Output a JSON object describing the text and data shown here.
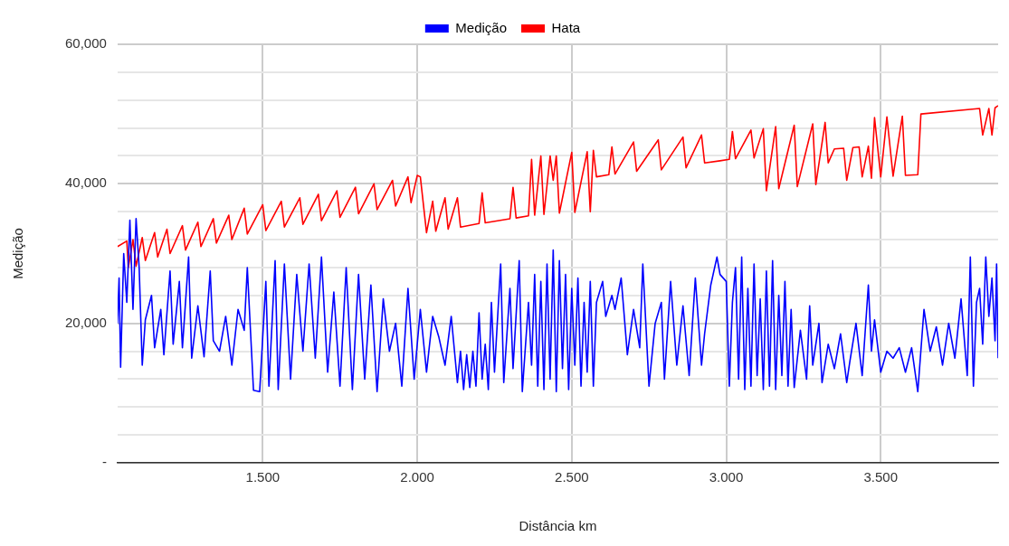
{
  "chart_data": {
    "type": "line",
    "xlabel": "Distância km",
    "ylabel": "Medição",
    "legend": "top",
    "grid": true,
    "marker": "none",
    "xlim": [
      1.03,
      3.88
    ],
    "xticks": [
      {
        "value": 1.5,
        "label": "1.500"
      },
      {
        "value": 2,
        "label": "2.000"
      },
      {
        "value": 2.5,
        "label": "2.500"
      },
      {
        "value": 3,
        "label": "3.000"
      },
      {
        "value": 3.5,
        "label": "3.500"
      }
    ],
    "ylim": [
      0,
      60000
    ],
    "yticks": [
      {
        "value": 0,
        "label": "-"
      },
      {
        "value": 4000,
        "label": null
      },
      {
        "value": 8000,
        "label": null
      },
      {
        "value": 12000,
        "label": null
      },
      {
        "value": 16000,
        "label": null
      },
      {
        "value": 20000,
        "label": "20,000"
      },
      {
        "value": 24000,
        "label": null
      },
      {
        "value": 28000,
        "label": null
      },
      {
        "value": 32000,
        "label": null
      },
      {
        "value": 36000,
        "label": null
      },
      {
        "value": 40000,
        "label": "40,000"
      },
      {
        "value": 44000,
        "label": null
      },
      {
        "value": 48000,
        "label": null
      },
      {
        "value": 52000,
        "label": null
      },
      {
        "value": 56000,
        "label": null
      },
      {
        "value": 60000,
        "label": "60,000"
      }
    ],
    "series": [
      {
        "name": "Medição",
        "color": "#0000ff",
        "x": [
          1.03,
          1.035,
          1.04,
          1.05,
          1.06,
          1.07,
          1.08,
          1.09,
          1.1,
          1.11,
          1.12,
          1.14,
          1.15,
          1.17,
          1.18,
          1.2,
          1.21,
          1.23,
          1.24,
          1.26,
          1.27,
          1.29,
          1.31,
          1.33,
          1.34,
          1.36,
          1.38,
          1.4,
          1.42,
          1.44,
          1.45,
          1.47,
          1.49,
          1.51,
          1.52,
          1.54,
          1.55,
          1.57,
          1.59,
          1.61,
          1.63,
          1.65,
          1.67,
          1.69,
          1.71,
          1.73,
          1.75,
          1.77,
          1.79,
          1.81,
          1.83,
          1.85,
          1.87,
          1.89,
          1.91,
          1.93,
          1.95,
          1.97,
          1.99,
          2.01,
          2.03,
          2.05,
          2.07,
          2.09,
          2.11,
          2.13,
          2.14,
          2.15,
          2.16,
          2.17,
          2.18,
          2.19,
          2.2,
          2.21,
          2.22,
          2.23,
          2.24,
          2.25,
          2.27,
          2.28,
          2.3,
          2.31,
          2.33,
          2.34,
          2.36,
          2.37,
          2.38,
          2.39,
          2.4,
          2.41,
          2.42,
          2.43,
          2.44,
          2.45,
          2.46,
          2.47,
          2.48,
          2.49,
          2.5,
          2.51,
          2.52,
          2.53,
          2.54,
          2.55,
          2.56,
          2.57,
          2.58,
          2.6,
          2.61,
          2.63,
          2.64,
          2.66,
          2.68,
          2.7,
          2.72,
          2.73,
          2.75,
          2.77,
          2.79,
          2.8,
          2.82,
          2.84,
          2.86,
          2.88,
          2.9,
          2.92,
          2.93,
          2.95,
          2.97,
          2.98,
          3.0,
          3.01,
          3.02,
          3.03,
          3.04,
          3.05,
          3.06,
          3.07,
          3.08,
          3.09,
          3.1,
          3.11,
          3.12,
          3.13,
          3.14,
          3.15,
          3.16,
          3.17,
          3.18,
          3.19,
          3.2,
          3.21,
          3.22,
          3.24,
          3.26,
          3.27,
          3.28,
          3.3,
          3.31,
          3.33,
          3.35,
          3.37,
          3.39,
          3.4,
          3.42,
          3.44,
          3.46,
          3.47,
          3.48,
          3.5,
          3.52,
          3.54,
          3.56,
          3.58,
          3.6,
          3.62,
          3.64,
          3.66,
          3.68,
          3.7,
          3.72,
          3.74,
          3.76,
          3.78,
          3.79,
          3.8,
          3.81,
          3.82,
          3.83,
          3.84,
          3.85,
          3.86,
          3.87,
          3.875,
          3.88
        ],
        "values": [
          20000,
          26500,
          13700,
          30000,
          23000,
          34800,
          22000,
          35000,
          28000,
          14000,
          20500,
          24000,
          16500,
          22000,
          15500,
          27500,
          17000,
          26000,
          16500,
          29500,
          15000,
          22500,
          15200,
          27500,
          17500,
          16000,
          21000,
          14000,
          22000,
          19000,
          28000,
          10400,
          10200,
          26000,
          11000,
          29000,
          10500,
          28500,
          12000,
          27000,
          16000,
          28500,
          15000,
          29500,
          13000,
          24500,
          11000,
          28000,
          10500,
          27000,
          12000,
          25500,
          10200,
          23500,
          16000,
          20000,
          11000,
          25000,
          12000,
          22000,
          13000,
          21000,
          18000,
          14000,
          21000,
          11500,
          16000,
          10500,
          15500,
          10800,
          16000,
          11000,
          21500,
          12000,
          17000,
          10500,
          23000,
          13000,
          28500,
          11500,
          25000,
          13500,
          29000,
          10200,
          23000,
          14000,
          27000,
          11000,
          26000,
          10500,
          28500,
          12000,
          30500,
          10200,
          29000,
          13500,
          27000,
          10500,
          25000,
          14000,
          26500,
          11000,
          23000,
          13000,
          26000,
          11000,
          23000,
          26000,
          21000,
          24000,
          22000,
          26500,
          15500,
          22000,
          16500,
          28500,
          11000,
          20000,
          23000,
          12000,
          26000,
          14000,
          22500,
          12500,
          26500,
          14000,
          18500,
          25500,
          29500,
          27000,
          26000,
          11000,
          23000,
          28000,
          12000,
          29500,
          10500,
          25000,
          11000,
          28500,
          12500,
          23500,
          10500,
          27500,
          11000,
          29000,
          10500,
          24000,
          12500,
          26000,
          11000,
          22000,
          10800,
          19000,
          12000,
          22500,
          14000,
          20000,
          11500,
          17000,
          13500,
          18500,
          11500,
          14500,
          20000,
          12500,
          25500,
          16000,
          20500,
          13000,
          16000,
          15000,
          16500,
          13000,
          16500,
          10200,
          22000,
          16000,
          19500,
          14000,
          20000,
          15000,
          23500,
          12500,
          29500,
          11000,
          23000,
          25000,
          17000,
          29500,
          21000,
          26500,
          17500,
          28500,
          15000
        ]
      },
      {
        "name": "Hata",
        "color": "#ff0000",
        "x": [
          1.03,
          1.06,
          1.065,
          1.08,
          1.09,
          1.11,
          1.12,
          1.15,
          1.16,
          1.19,
          1.2,
          1.24,
          1.25,
          1.29,
          1.3,
          1.34,
          1.35,
          1.39,
          1.4,
          1.44,
          1.45,
          1.5,
          1.51,
          1.56,
          1.57,
          1.62,
          1.63,
          1.68,
          1.69,
          1.74,
          1.75,
          1.8,
          1.81,
          1.86,
          1.87,
          1.92,
          1.93,
          1.97,
          1.98,
          2.0,
          2.01,
          2.03,
          2.05,
          2.06,
          2.09,
          2.1,
          2.13,
          2.14,
          2.2,
          2.21,
          2.22,
          2.3,
          2.31,
          2.32,
          2.36,
          2.37,
          2.38,
          2.4,
          2.41,
          2.43,
          2.44,
          2.45,
          2.46,
          2.5,
          2.51,
          2.55,
          2.56,
          2.57,
          2.58,
          2.62,
          2.63,
          2.64,
          2.7,
          2.71,
          2.78,
          2.79,
          2.86,
          2.87,
          2.92,
          2.93,
          2.98,
          3.01,
          3.02,
          3.03,
          3.08,
          3.09,
          3.12,
          3.13,
          3.16,
          3.17,
          3.22,
          3.23,
          3.28,
          3.29,
          3.32,
          3.33,
          3.35,
          3.38,
          3.39,
          3.41,
          3.43,
          3.44,
          3.46,
          3.47,
          3.48,
          3.5,
          3.52,
          3.54,
          3.57,
          3.58,
          3.62,
          3.63,
          3.82,
          3.83,
          3.85,
          3.86,
          3.87,
          3.88
        ],
        "values": [
          31000,
          31800,
          28000,
          32000,
          28200,
          32300,
          29000,
          33000,
          29500,
          33500,
          30000,
          34000,
          30500,
          34500,
          31000,
          35000,
          31500,
          35500,
          32000,
          36500,
          32800,
          37000,
          33300,
          37500,
          33800,
          38000,
          34200,
          38500,
          34700,
          39000,
          35200,
          39500,
          35700,
          40000,
          36300,
          40500,
          36800,
          41000,
          37300,
          41200,
          41000,
          33000,
          37500,
          33200,
          38000,
          33500,
          38000,
          33800,
          34300,
          38700,
          34400,
          35000,
          39500,
          35100,
          35400,
          43500,
          35500,
          44000,
          35600,
          44000,
          40500,
          44000,
          35800,
          44500,
          35900,
          44600,
          36000,
          44800,
          41000,
          41300,
          45300,
          41400,
          46000,
          41800,
          46300,
          42000,
          46700,
          42300,
          47000,
          43000,
          43300,
          43500,
          47500,
          43600,
          47700,
          43700,
          47900,
          39000,
          48200,
          39300,
          48400,
          39600,
          48600,
          39900,
          48800,
          43000,
          45000,
          45100,
          40500,
          45200,
          45300,
          41000,
          45400,
          40800,
          49500,
          41000,
          49600,
          41100,
          49700,
          41200,
          41300,
          50000,
          50800,
          47000,
          50800,
          47000,
          50900,
          51200
        ]
      }
    ]
  }
}
